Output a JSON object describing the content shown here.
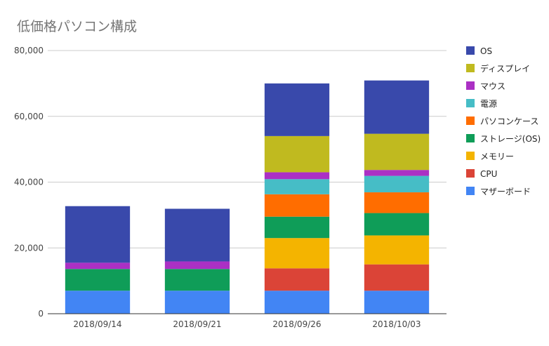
{
  "chart_data": {
    "type": "bar",
    "stacked": true,
    "title": "低価格パソコン構成",
    "xlabel": "",
    "ylabel": "",
    "categories": [
      "2018/09/14",
      "2018/09/21",
      "2018/09/26",
      "2018/10/03"
    ],
    "ylim": [
      0,
      80000
    ],
    "yticks": [
      0,
      20000,
      40000,
      60000,
      80000
    ],
    "ytick_labels": [
      "0",
      "20,000",
      "40,000",
      "60,000",
      "80,000"
    ],
    "grid": true,
    "legend_position": "right",
    "series": [
      {
        "name": "マザーボード",
        "color": "#4285f4",
        "values": [
          7000,
          7000,
          7000,
          7000
        ]
      },
      {
        "name": "CPU",
        "color": "#db4437",
        "values": [
          0,
          0,
          6800,
          8000
        ]
      },
      {
        "name": "メモリー",
        "color": "#f4b400",
        "values": [
          0,
          0,
          9200,
          8800
        ]
      },
      {
        "name": "ストレージ(OS)",
        "color": "#0f9d58",
        "values": [
          6600,
          6600,
          6500,
          6800
        ]
      },
      {
        "name": "パソコンケース",
        "color": "#ff6d00",
        "values": [
          0,
          0,
          6800,
          6300
        ]
      },
      {
        "name": "電源",
        "color": "#46bdc6",
        "values": [
          0,
          0,
          4600,
          5000
        ]
      },
      {
        "name": "マウス",
        "color": "#ab30c4",
        "values": [
          1900,
          2300,
          2100,
          1800
        ]
      },
      {
        "name": "ディスプレイ",
        "color": "#c0ba1f",
        "values": [
          0,
          0,
          11000,
          11000
        ]
      },
      {
        "name": "OS",
        "color": "#3949ab",
        "values": [
          17200,
          16000,
          16000,
          16200
        ]
      }
    ],
    "legend_order": [
      "OS",
      "ディスプレイ",
      "マウス",
      "電源",
      "パソコンケース",
      "ストレージ(OS)",
      "メモリー",
      "CPU",
      "マザーボード"
    ]
  }
}
